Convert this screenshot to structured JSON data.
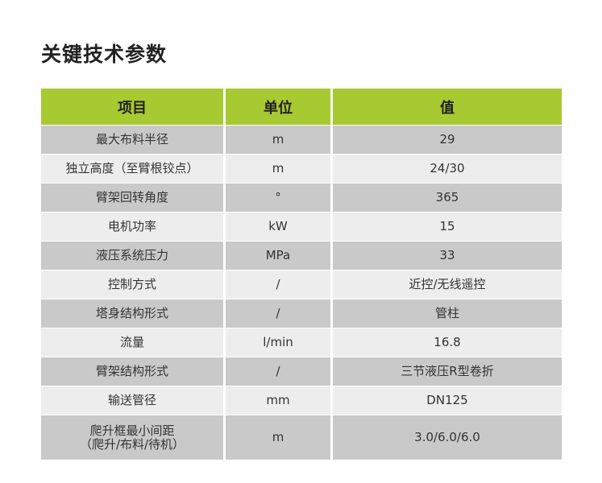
{
  "title": "关键技术参数",
  "headers": [
    "项目",
    "单位",
    "值"
  ],
  "rows": [
    [
      "最大布料半径",
      "m",
      "29"
    ],
    [
      "独立高度（至臂根铰点）",
      "m",
      "24/30"
    ],
    [
      "臂架回转角度",
      "°",
      "365"
    ],
    [
      "电机功率",
      "kW",
      "15"
    ],
    [
      "液压系统压力",
      "MPa",
      "33"
    ],
    [
      "控制方式",
      "/",
      "近控/无线遥控"
    ],
    [
      "塔身结构形式",
      "/",
      "管柱"
    ],
    [
      "流量",
      "l/min",
      "16.8"
    ],
    [
      "臂架结构形式",
      "/",
      "三节液压R型卷折"
    ],
    [
      "输送管径",
      "mm",
      "DN125"
    ],
    [
      "爬升框最小间距\n（爬升/布料/待机）",
      "m",
      "3.0/6.0/6.0"
    ]
  ],
  "colors": {
    "header": "#a7c932",
    "row_dark": "#c9c9c9",
    "row_light": "#ededed"
  }
}
